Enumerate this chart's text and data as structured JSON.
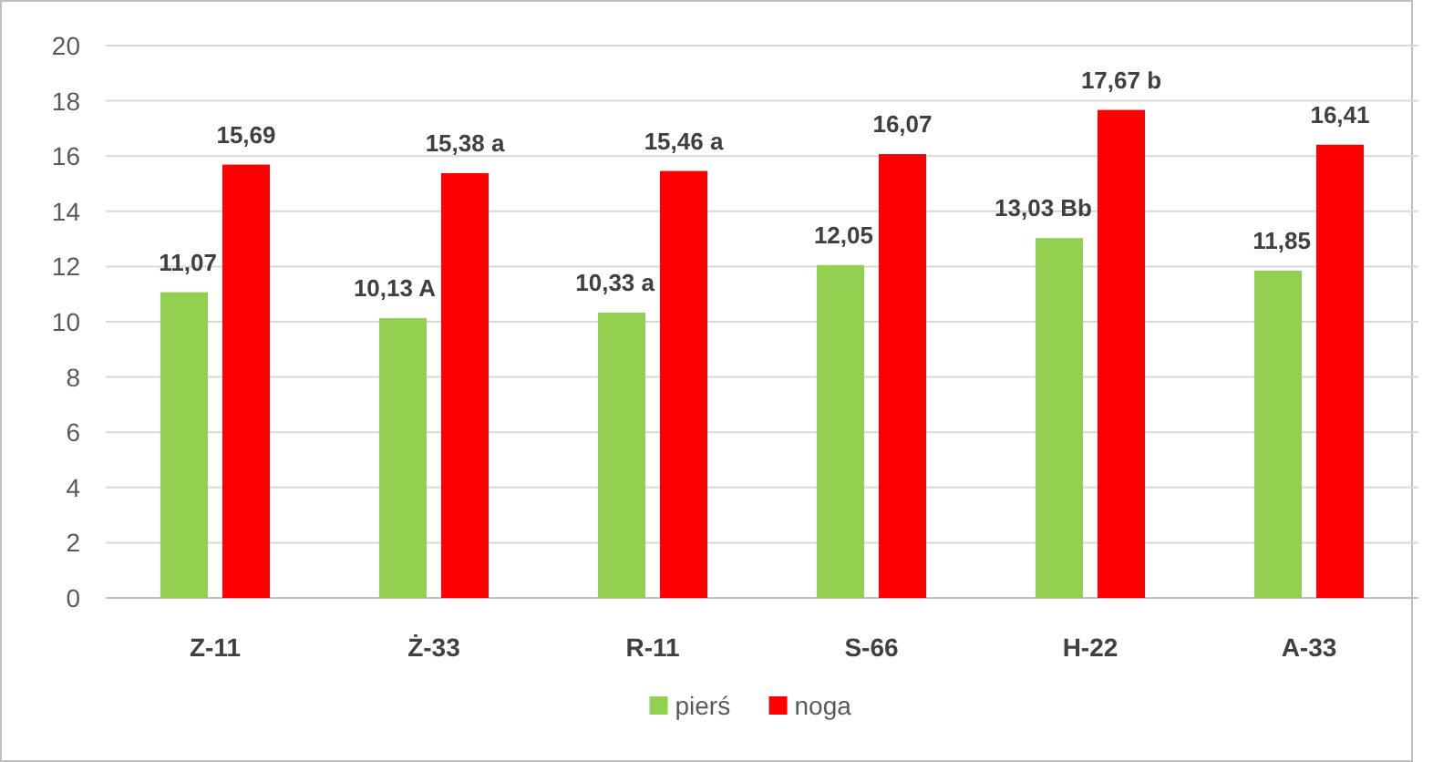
{
  "chart_data": {
    "type": "bar",
    "categories": [
      "Z-11",
      "Ż-33",
      "R-11",
      "S-66",
      "H-22",
      "A-33"
    ],
    "series": [
      {
        "name": "pierś",
        "color": "#92d050",
        "values": [
          11.07,
          10.13,
          10.33,
          12.05,
          13.03,
          11.85
        ],
        "value_labels": [
          "11,07",
          "10,13 A",
          "10,33 a",
          "12,05",
          "13,03 Bb",
          "11,85"
        ]
      },
      {
        "name": "noga",
        "color": "#ff0000",
        "values": [
          15.69,
          15.38,
          15.46,
          16.07,
          17.67,
          16.41
        ],
        "value_labels": [
          "15,69",
          "15,38 a",
          "15,46 a",
          "16,07",
          "17,67 b",
          "16,41"
        ]
      }
    ],
    "ylim": [
      0,
      20
    ],
    "yticks": [
      0,
      2,
      4,
      6,
      8,
      10,
      12,
      14,
      16,
      18,
      20
    ],
    "grid": "y",
    "legend": "bottom"
  }
}
